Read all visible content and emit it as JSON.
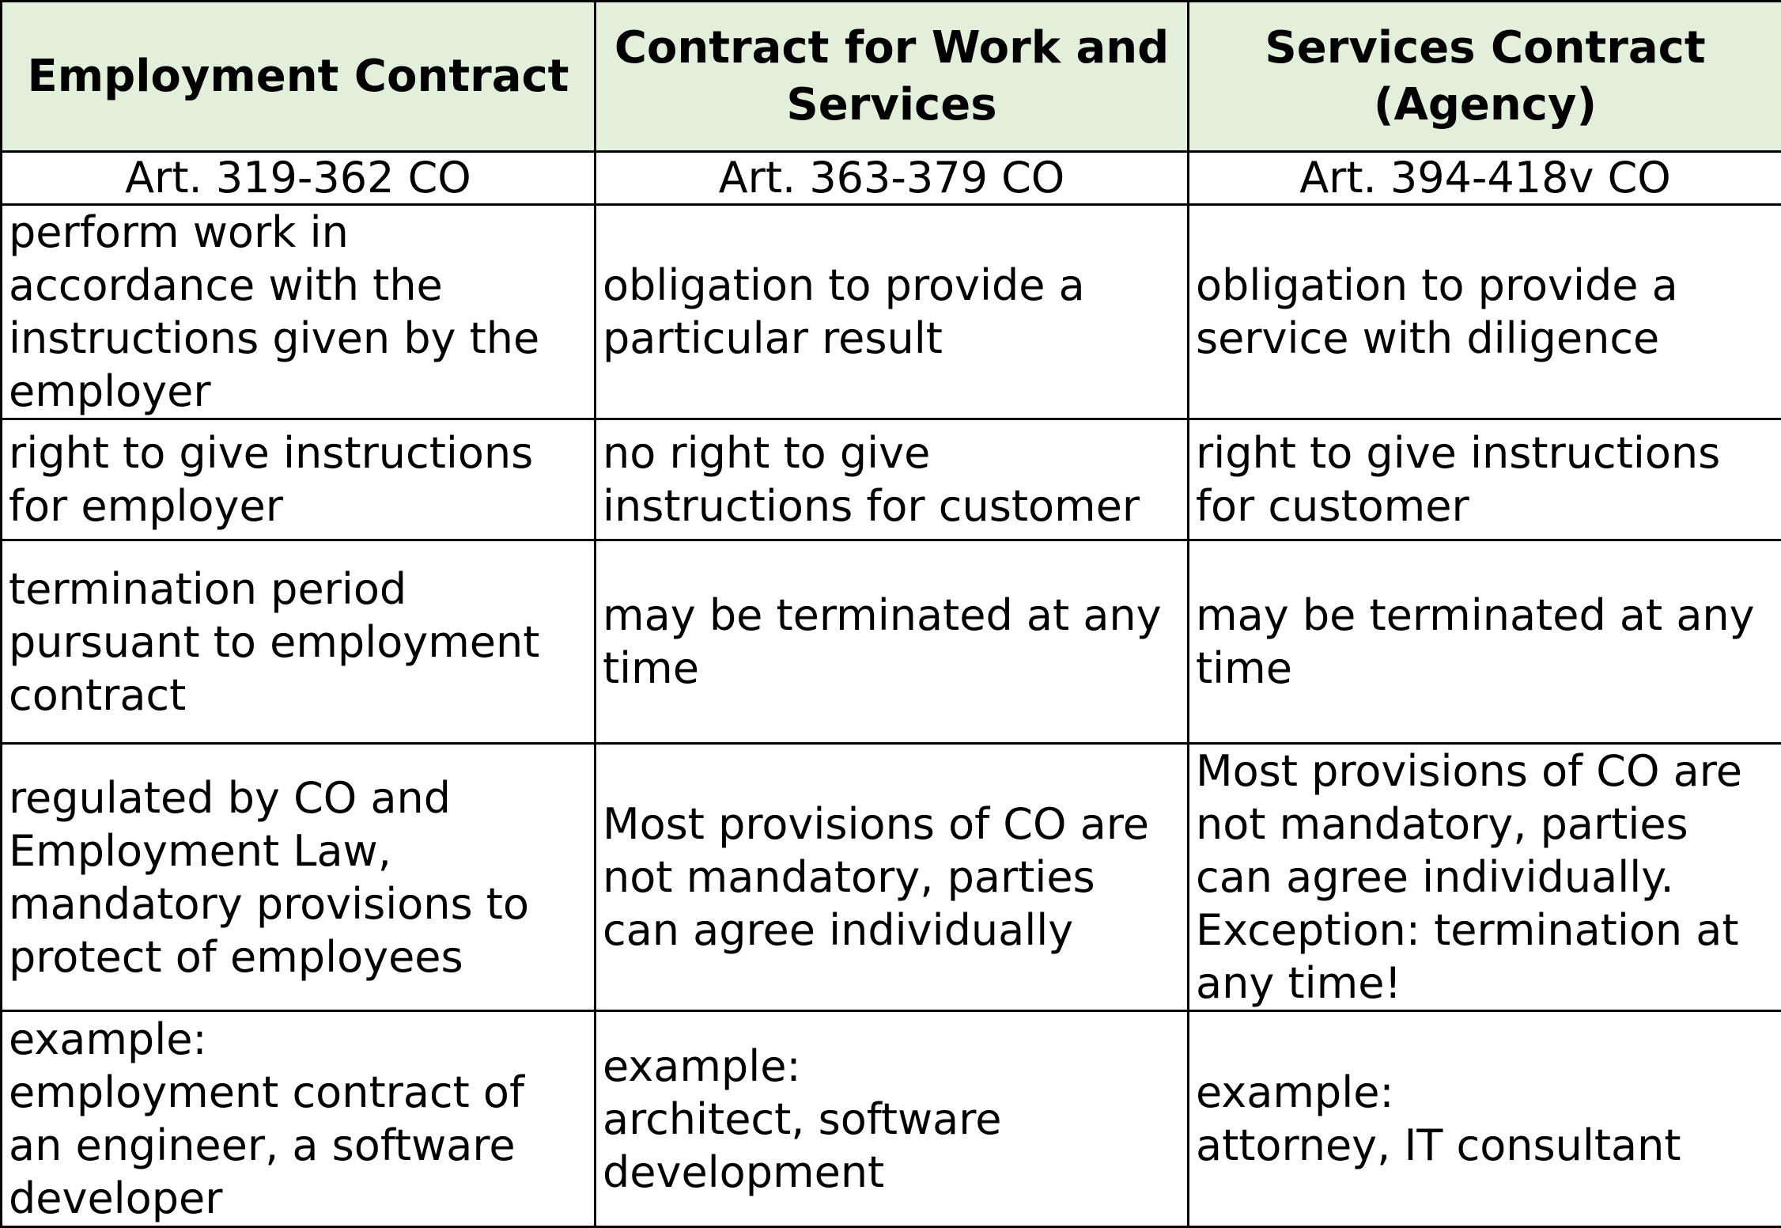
{
  "headers": [
    "Employment Contract",
    "Contract for Work and Services",
    "Services Contract (Agency)"
  ],
  "articles": [
    "Art. 319-362 CO",
    "Art. 363-379 CO",
    "Art. 394-418v CO"
  ],
  "rows": [
    [
      "perform work in accordance with the instructions given by the employer",
      "obligation to provide a particular result",
      "obligation to provide a service with diligence"
    ],
    [
      "right to give instructions for employer",
      "no right to give instructions for customer",
      "right to give instructions for customer"
    ],
    [
      "termination period pursuant to employment contract",
      "may be terminated at any time",
      "may be terminated at any time"
    ],
    [
      "regulated by CO and Employment Law, mandatory provisions to protect of employees",
      "Most provisions of CO are not mandatory, parties can agree individually",
      "Most provisions of CO are not mandatory, parties can agree individually. Exception: termination at any time!"
    ],
    [
      "example:\nemployment contract of an engineer, a software developer",
      "example:\narchitect, software development",
      "example:\nattorney, IT consultant"
    ]
  ],
  "colors": {
    "header_background": "#e2efda",
    "border": "#000000"
  }
}
